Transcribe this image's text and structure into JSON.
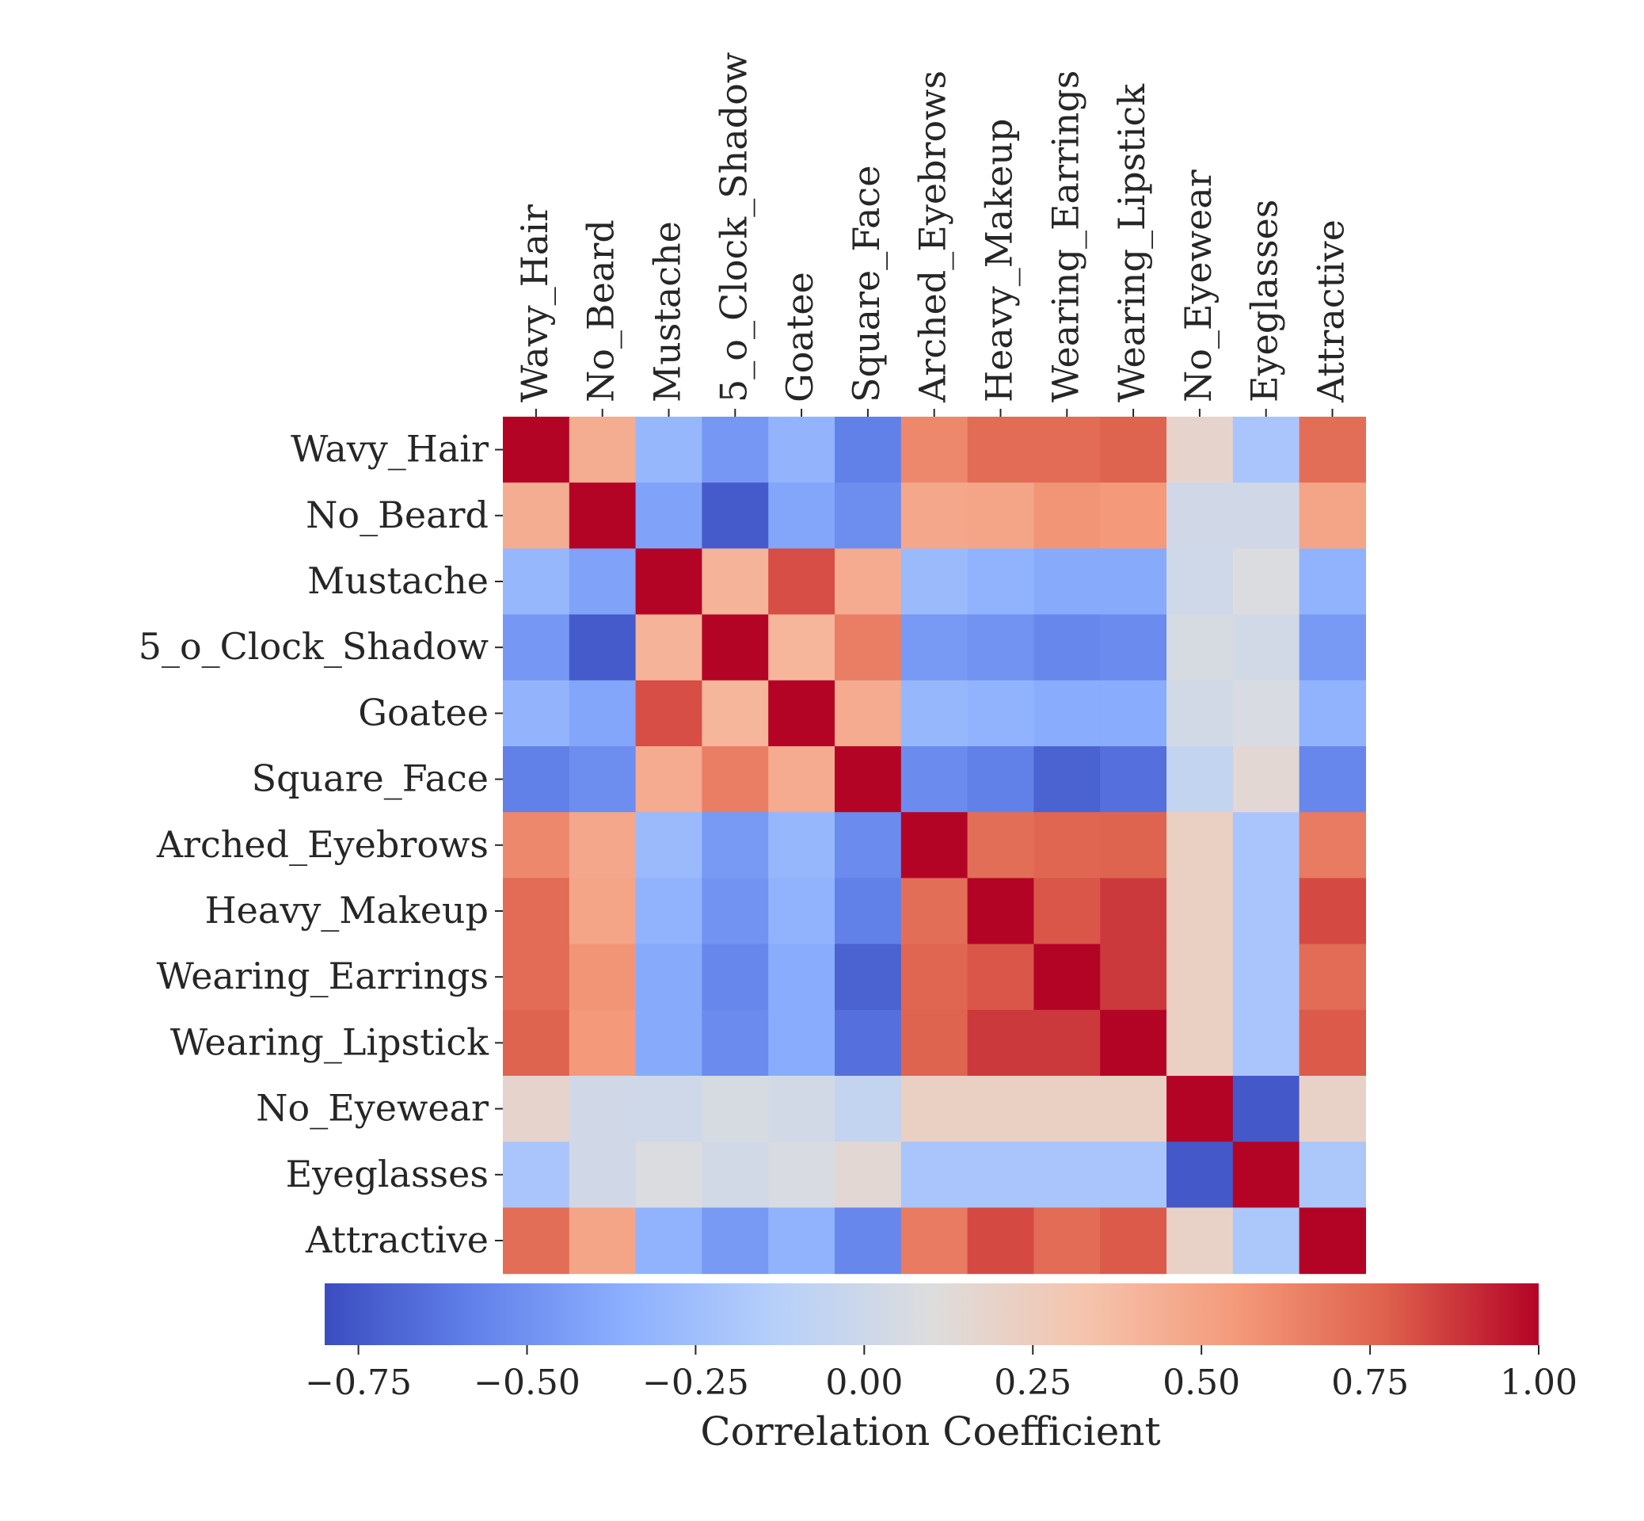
{
  "chart_data": {
    "type": "heatmap",
    "title": "",
    "labels": [
      "Wavy_Hair",
      "No_Beard",
      "Mustache",
      "5_o_Clock_Shadow",
      "Goatee",
      "Square_Face",
      "Arched_Eyebrows",
      "Heavy_Makeup",
      "Wearing_Earrings",
      "Wearing_Lipstick",
      "No_Eyewear",
      "Eyeglasses",
      "Attractive"
    ],
    "matrix": [
      [
        1.0,
        0.45,
        -0.3,
        -0.47,
        -0.32,
        -0.58,
        0.62,
        0.73,
        0.73,
        0.76,
        0.18,
        -0.2,
        0.72
      ],
      [
        0.45,
        1.0,
        -0.42,
        -0.74,
        -0.4,
        -0.52,
        0.48,
        0.49,
        0.57,
        0.55,
        0.02,
        0.02,
        0.49
      ],
      [
        -0.3,
        -0.42,
        1.0,
        0.41,
        0.82,
        0.46,
        -0.28,
        -0.33,
        -0.38,
        -0.38,
        0.01,
        0.08,
        -0.33
      ],
      [
        -0.47,
        -0.74,
        0.41,
        1.0,
        0.4,
        0.66,
        -0.46,
        -0.49,
        -0.55,
        -0.53,
        0.06,
        0.03,
        -0.46
      ],
      [
        -0.32,
        -0.4,
        0.82,
        0.4,
        1.0,
        0.46,
        -0.3,
        -0.33,
        -0.37,
        -0.37,
        0.03,
        0.07,
        -0.33
      ],
      [
        -0.58,
        -0.52,
        0.46,
        0.66,
        0.46,
        1.0,
        -0.53,
        -0.58,
        -0.71,
        -0.65,
        -0.06,
        0.15,
        -0.55
      ],
      [
        0.62,
        0.48,
        -0.28,
        -0.46,
        -0.3,
        -0.53,
        1.0,
        0.72,
        0.75,
        0.76,
        0.22,
        -0.2,
        0.67
      ],
      [
        0.73,
        0.49,
        -0.33,
        -0.49,
        -0.33,
        -0.58,
        0.72,
        1.0,
        0.8,
        0.87,
        0.22,
        -0.2,
        0.83
      ],
      [
        0.73,
        0.57,
        -0.38,
        -0.55,
        -0.37,
        -0.71,
        0.75,
        0.8,
        1.0,
        0.87,
        0.22,
        -0.2,
        0.73
      ],
      [
        0.76,
        0.55,
        -0.38,
        -0.53,
        -0.37,
        -0.65,
        0.76,
        0.87,
        0.87,
        1.0,
        0.22,
        -0.2,
        0.79
      ],
      [
        0.18,
        0.02,
        0.01,
        0.06,
        0.03,
        -0.06,
        0.22,
        0.22,
        0.22,
        0.22,
        1.0,
        -0.75,
        0.2
      ],
      [
        -0.2,
        0.02,
        0.08,
        0.03,
        0.07,
        0.15,
        -0.2,
        -0.2,
        -0.2,
        -0.2,
        -0.75,
        1.0,
        -0.19
      ],
      [
        0.72,
        0.49,
        -0.33,
        -0.46,
        -0.33,
        -0.55,
        0.67,
        0.83,
        0.73,
        0.79,
        0.2,
        -0.19,
        1.0
      ]
    ],
    "colorbar": {
      "label": "Correlation Coefficient",
      "range": [
        -0.8,
        1.0
      ],
      "colormap": "coolwarm",
      "ticks": [
        -0.75,
        -0.5,
        -0.25,
        0.0,
        0.25,
        0.5,
        0.75,
        1.0
      ],
      "tick_labels": [
        "−0.75",
        "−0.50",
        "−0.25",
        "0.00",
        "0.25",
        "0.50",
        "0.75",
        "1.00"
      ],
      "location": "bottom"
    }
  }
}
